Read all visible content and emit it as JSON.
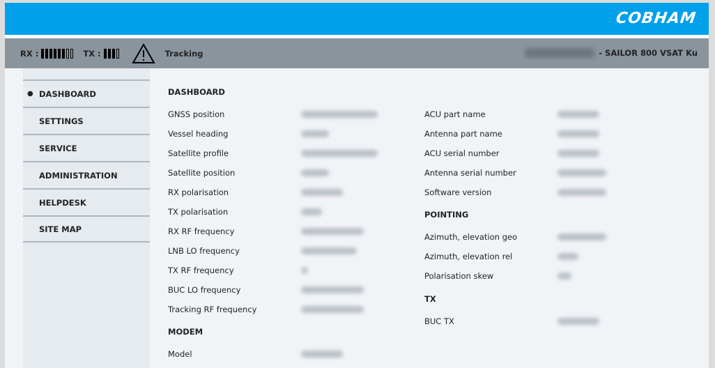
{
  "header": {
    "logo": "COBHAM"
  },
  "status": {
    "rx_label": "RX :",
    "rx_level": 6,
    "rx_max": 8,
    "tx_label": "TX :",
    "tx_level": 3,
    "tx_max": 4,
    "warning_icon": "warning-triangle-icon",
    "state": "Tracking",
    "product": "- SAILOR 800 VSAT Ku"
  },
  "nav": [
    {
      "label": "DASHBOARD",
      "active": true
    },
    {
      "label": "SETTINGS"
    },
    {
      "label": "SERVICE"
    },
    {
      "label": "ADMINISTRATION"
    },
    {
      "label": "HELPDESK"
    },
    {
      "label": "SITE MAP"
    }
  ],
  "left": {
    "dashboard_title": "DASHBOARD",
    "rows": [
      "GNSS position",
      "Vessel heading",
      "Satellite profile",
      "Satellite position",
      "RX polarisation",
      "TX polarisation",
      "RX RF frequency",
      "LNB LO frequency",
      "TX RF frequency",
      "BUC LO frequency",
      "Tracking RF frequency"
    ],
    "modem_title": "MODEM",
    "modem_rows": [
      "Model"
    ]
  },
  "right": {
    "rows": [
      "ACU part name",
      "Antenna part name",
      "ACU serial number",
      "Antenna serial number",
      "Software version"
    ],
    "pointing_title": "POINTING",
    "pointing_rows": [
      "Azimuth, elevation geo",
      "Azimuth, elevation rel",
      "Polarisation skew"
    ],
    "tx_title": "TX",
    "tx_rows": [
      "BUC TX"
    ]
  },
  "colors": {
    "header": "#00a0ea",
    "status_bar": "#8a949d"
  }
}
